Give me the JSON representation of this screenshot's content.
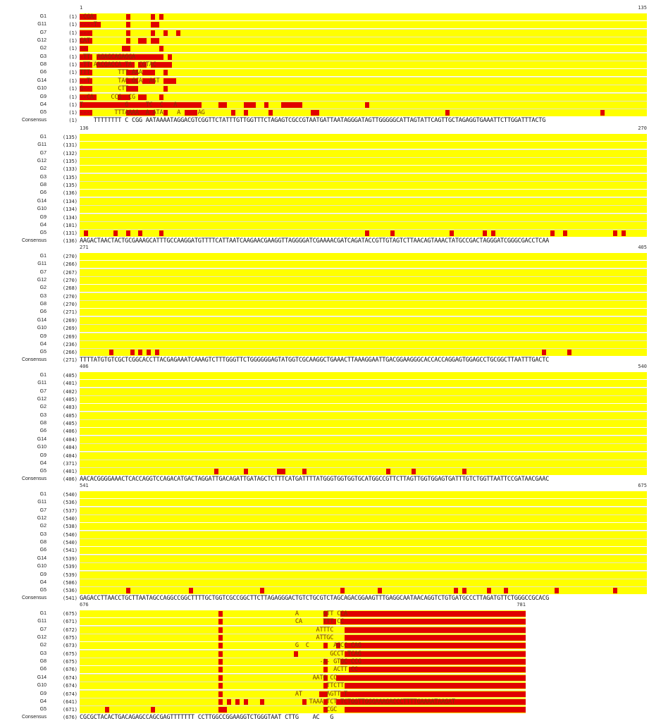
{
  "consensus_label": "Consensus",
  "colors": {
    "match": "#ffff00",
    "mismatch": "#e00000",
    "text": "#222222"
  },
  "blocks": [
    {
      "start": "1",
      "end": "135",
      "rows": [
        {
          "name": "G1",
          "pos": "(1)",
          "seq": "-CGA"
        },
        {
          "name": "G11",
          "pos": "(1)",
          "seq": "----T"
        },
        {
          "name": "G7",
          "pos": "(1)",
          "seq": "---"
        },
        {
          "name": "G12",
          "pos": "(1)",
          "seq": "CAT"
        },
        {
          "name": "G2",
          "pos": "(1)",
          "seq": "--"
        },
        {
          "name": "G3",
          "pos": "(1)",
          "seq": "-TT  AGAGCAGAGGA"
        },
        {
          "name": "G8",
          "pos": "(1)",
          "seq": "-TT AACGACCA TA  CGTAC"
        },
        {
          "name": "G6",
          "pos": "(1)",
          "seq": "TTT        TTT AAA"
        },
        {
          "name": "G14",
          "pos": "(1)",
          "seq": "--T        TAC GCA  AGT"
        },
        {
          "name": "G10",
          "pos": "(1)",
          "seq": "G--        CTT"
        },
        {
          "name": "G9",
          "pos": "(1)",
          "seq": "--CA     CCG  CG"
        },
        {
          "name": "G4",
          "pos": "(1)",
          "seq": "T            G     TC  C   A"
        },
        {
          "name": "G5",
          "pos": "(1)",
          "seq": "---       TTTAAAA  A ATA    A     AG"
        }
      ],
      "consensus_pos": "(1)",
      "consensus_seq": "    TTTTTTTT C CGG AATAAAATAGGACGTCGGTTCTATTTGTTGGTTTCTAGAGTCGCCGTAATGATTAATAGGGATAGTTGGGGGCATTAGTATTCAGTTGCTAGAGGTGAAATTCTTGGATTTACTG"
    },
    {
      "start": "136",
      "end": "270",
      "rows": [
        {
          "name": "G1",
          "pos": "(135)",
          "seq": ""
        },
        {
          "name": "G11",
          "pos": "(131)",
          "seq": ""
        },
        {
          "name": "G7",
          "pos": "(132)",
          "seq": ""
        },
        {
          "name": "G12",
          "pos": "(135)",
          "seq": ""
        },
        {
          "name": "G2",
          "pos": "(133)",
          "seq": ""
        },
        {
          "name": "G3",
          "pos": "(135)",
          "seq": ""
        },
        {
          "name": "G8",
          "pos": "(135)",
          "seq": ""
        },
        {
          "name": "G6",
          "pos": "(136)",
          "seq": ""
        },
        {
          "name": "G14",
          "pos": "(134)",
          "seq": ""
        },
        {
          "name": "G10",
          "pos": "(134)",
          "seq": ""
        },
        {
          "name": "G9",
          "pos": "(134)",
          "seq": ""
        },
        {
          "name": "G4",
          "pos": "(101)",
          "seq": ""
        },
        {
          "name": "G5",
          "pos": "(131)",
          "seq": ""
        }
      ],
      "consensus_pos": "(136)",
      "consensus_seq": "AAGACTAACTACTGCGAAAGCATTTGCCAAGGATGTTTTCATTAATCAAGAACGAAGGTTAGGGGATCGAAAACGATCAGATACCGTTGTAGTCTTAACAGTAAACTATGCCGACTAGGGATCGGGCGACCTCAA"
    },
    {
      "start": "271",
      "end": "405",
      "rows": [
        {
          "name": "G1",
          "pos": "(270)",
          "seq": ""
        },
        {
          "name": "G11",
          "pos": "(266)",
          "seq": ""
        },
        {
          "name": "G7",
          "pos": "(267)",
          "seq": ""
        },
        {
          "name": "G12",
          "pos": "(270)",
          "seq": ""
        },
        {
          "name": "G2",
          "pos": "(268)",
          "seq": ""
        },
        {
          "name": "G3",
          "pos": "(270)",
          "seq": ""
        },
        {
          "name": "G8",
          "pos": "(270)",
          "seq": ""
        },
        {
          "name": "G6",
          "pos": "(271)",
          "seq": ""
        },
        {
          "name": "G14",
          "pos": "(269)",
          "seq": ""
        },
        {
          "name": "G10",
          "pos": "(269)",
          "seq": ""
        },
        {
          "name": "G9",
          "pos": "(269)",
          "seq": ""
        },
        {
          "name": "G4",
          "pos": "(236)",
          "seq": ""
        },
        {
          "name": "G5",
          "pos": "(266)",
          "seq": ""
        }
      ],
      "consensus_pos": "(271)",
      "consensus_seq": "TTTTATGTGTCGCTCGGCACCTTACGAGAAATCAAAGTCTTTGGGTTCTGGGGGGAGTATGGTCGCAAGGCTGAAACTTAAAGGAATTGACGGAAGGGCACCACCAGGAGTGGAGCCTGCGGCTTAATTTGACTC"
    },
    {
      "start": "406",
      "end": "540",
      "rows": [
        {
          "name": "G1",
          "pos": "(405)",
          "seq": ""
        },
        {
          "name": "G11",
          "pos": "(401)",
          "seq": ""
        },
        {
          "name": "G7",
          "pos": "(402)",
          "seq": ""
        },
        {
          "name": "G12",
          "pos": "(405)",
          "seq": ""
        },
        {
          "name": "G2",
          "pos": "(403)",
          "seq": ""
        },
        {
          "name": "G3",
          "pos": "(405)",
          "seq": ""
        },
        {
          "name": "G8",
          "pos": "(405)",
          "seq": ""
        },
        {
          "name": "G6",
          "pos": "(406)",
          "seq": ""
        },
        {
          "name": "G14",
          "pos": "(404)",
          "seq": ""
        },
        {
          "name": "G10",
          "pos": "(404)",
          "seq": ""
        },
        {
          "name": "G9",
          "pos": "(404)",
          "seq": ""
        },
        {
          "name": "G4",
          "pos": "(371)",
          "seq": ""
        },
        {
          "name": "G5",
          "pos": "(401)",
          "seq": ""
        }
      ],
      "consensus_pos": "(406)",
      "consensus_seq": "AACACGGGGAAACTCACCAGGTCCAGACATGACTAGGATTGACAGATTGATAGCTCTTTCATGATTTTATGGGTGGTGGTGCATGGCCGTTCTTAGTTGGTGGAGTGATTTGTCTGGTTAATTCCGATAACGAAC"
    },
    {
      "start": "541",
      "end": "675",
      "rows": [
        {
          "name": "G1",
          "pos": "(540)",
          "seq": ""
        },
        {
          "name": "G11",
          "pos": "(536)",
          "seq": ""
        },
        {
          "name": "G7",
          "pos": "(537)",
          "seq": ""
        },
        {
          "name": "G12",
          "pos": "(540)",
          "seq": ""
        },
        {
          "name": "G2",
          "pos": "(538)",
          "seq": ""
        },
        {
          "name": "G3",
          "pos": "(540)",
          "seq": ""
        },
        {
          "name": "G8",
          "pos": "(540)",
          "seq": ""
        },
        {
          "name": "G6",
          "pos": "(541)",
          "seq": ""
        },
        {
          "name": "G14",
          "pos": "(539)",
          "seq": ""
        },
        {
          "name": "G10",
          "pos": "(539)",
          "seq": ""
        },
        {
          "name": "G9",
          "pos": "(539)",
          "seq": ""
        },
        {
          "name": "G4",
          "pos": "(506)",
          "seq": ""
        },
        {
          "name": "G5",
          "pos": "(536)",
          "seq": ""
        }
      ],
      "consensus_pos": "(541)",
      "consensus_seq": "GAGACCTTAACCTGCTTAATAGCCAGGCCGGCTTTTGCTGGTCGCCGGCTTCTTAGAGGGACTGTCTGCGTCTAGCAGACGGAAGTTTGAGGCAATAACAGGTCTGTGATGCCCTTAGATGTTCTGGGCCGCACG"
    },
    {
      "start": "676",
      "end": "781",
      "rows": [
        {
          "name": "G1",
          "pos": "(675)",
          "seq": "                                                              A       GTT CCA"
        },
        {
          "name": "G11",
          "pos": "(671)",
          "seq": "                                                              CA      TTT CC"
        },
        {
          "name": "G7",
          "pos": "(672)",
          "seq": "                                                                    ATTTC"
        },
        {
          "name": "G12",
          "pos": "(675)",
          "seq": "                                                                    ATTGC"
        },
        {
          "name": "G2",
          "pos": "(673)",
          "seq": "                                                              G  C       AGCC CAG"
        },
        {
          "name": "G3",
          "pos": "(675)",
          "seq": "                                                                        GCCT TCAG"
        },
        {
          "name": "G8",
          "pos": "(675)",
          "seq": "                                                                     -A- GTGC CCG"
        },
        {
          "name": "G6",
          "pos": "(676)",
          "seq": "                                                                         ACTT CC"
        },
        {
          "name": "G14",
          "pos": "(674)",
          "seq": "                                                                   AATG CC"
        },
        {
          "name": "G10",
          "pos": "(674)",
          "seq": "                                                                       TTCTT"
        },
        {
          "name": "G9",
          "pos": "(674)",
          "seq": "                                                              AT       AGTT T"
        },
        {
          "name": "G4",
          "pos": "(641)",
          "seq": "                                                                  TAAA TCT TCTGGTTGGGAAAGACCCTTTTGAAAATAAGAT"
        },
        {
          "name": "G5",
          "pos": "(671)",
          "seq": "                                                                       CGC"
        }
      ],
      "consensus_pos": "(676)",
      "consensus_seq": "CGCGCTACACTGACAGAGCCAGCGAGTTTTTTT CCTTGGCCGGAAGGTCTGGGTAAT CTTG    AC   G"
    }
  ]
}
